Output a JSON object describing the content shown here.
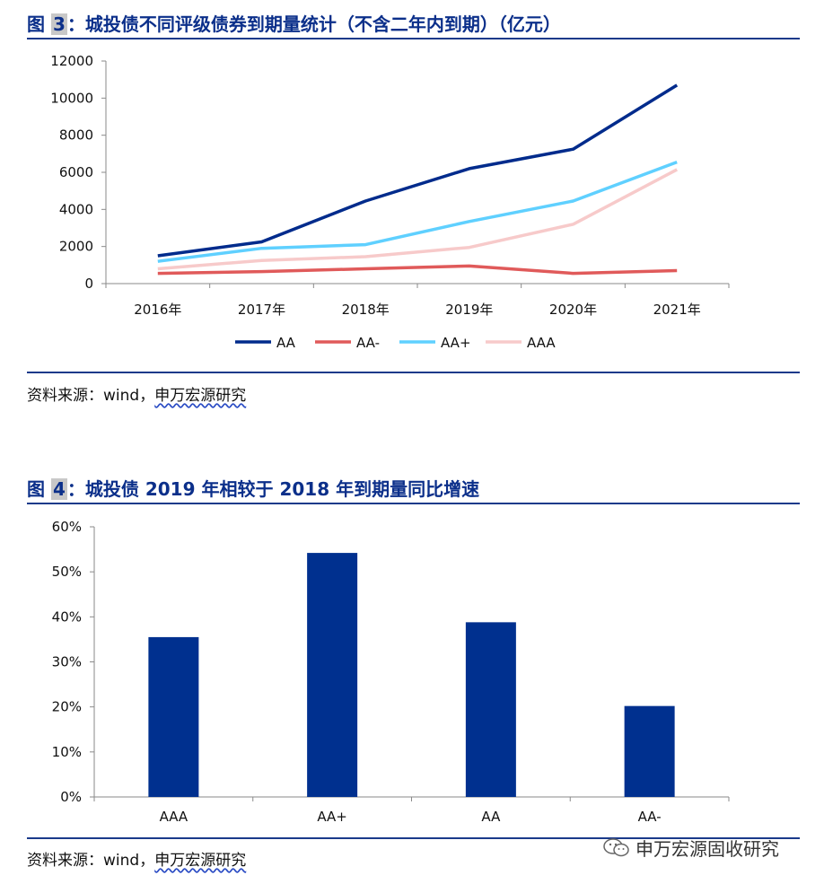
{
  "figure1": {
    "label": "图",
    "num": "3",
    "title": "：城投债不同评级债券到期量统计（不含二年内到期）（亿元）",
    "source_prefix": "资料来源：wind，",
    "source_company": "申万宏源研究"
  },
  "figure2": {
    "label": "图",
    "num": "4",
    "title": "：城投债 2019 年相较于 2018 年到期量同比增速",
    "source_prefix": "资料来源：wind，",
    "source_company": "申万宏源研究"
  },
  "watermark": {
    "text": "申万宏源固收研究",
    "icon": "wechat-icon"
  },
  "chart_data": [
    {
      "type": "line",
      "categories": [
        "2016年",
        "2017年",
        "2018年",
        "2019年",
        "2020年",
        "2021年"
      ],
      "ylim": [
        0,
        12000
      ],
      "yticks": [
        0,
        2000,
        4000,
        6000,
        8000,
        10000,
        12000
      ],
      "grid": false,
      "legend": "bottom",
      "series": [
        {
          "name": "AA",
          "color": "#002b8c",
          "values": [
            1500,
            2250,
            4450,
            6200,
            7250,
            10700
          ]
        },
        {
          "name": "AA-",
          "color": "#e05a5a",
          "values": [
            550,
            650,
            800,
            950,
            550,
            700
          ]
        },
        {
          "name": "AA+",
          "color": "#5fd0ff",
          "values": [
            1200,
            1900,
            2100,
            3350,
            4450,
            6550
          ]
        },
        {
          "name": "AAA",
          "color": "#f7caca",
          "values": [
            800,
            1250,
            1450,
            1950,
            3200,
            6150
          ]
        }
      ]
    },
    {
      "type": "bar",
      "categories": [
        "AAA",
        "AA+",
        "AA",
        "AA-"
      ],
      "values": [
        0.355,
        0.542,
        0.388,
        0.202
      ],
      "ylim": [
        0,
        0.6
      ],
      "yticks": [
        "0%",
        "10%",
        "20%",
        "30%",
        "40%",
        "50%",
        "60%"
      ],
      "color": "#00308f",
      "grid": false
    }
  ]
}
